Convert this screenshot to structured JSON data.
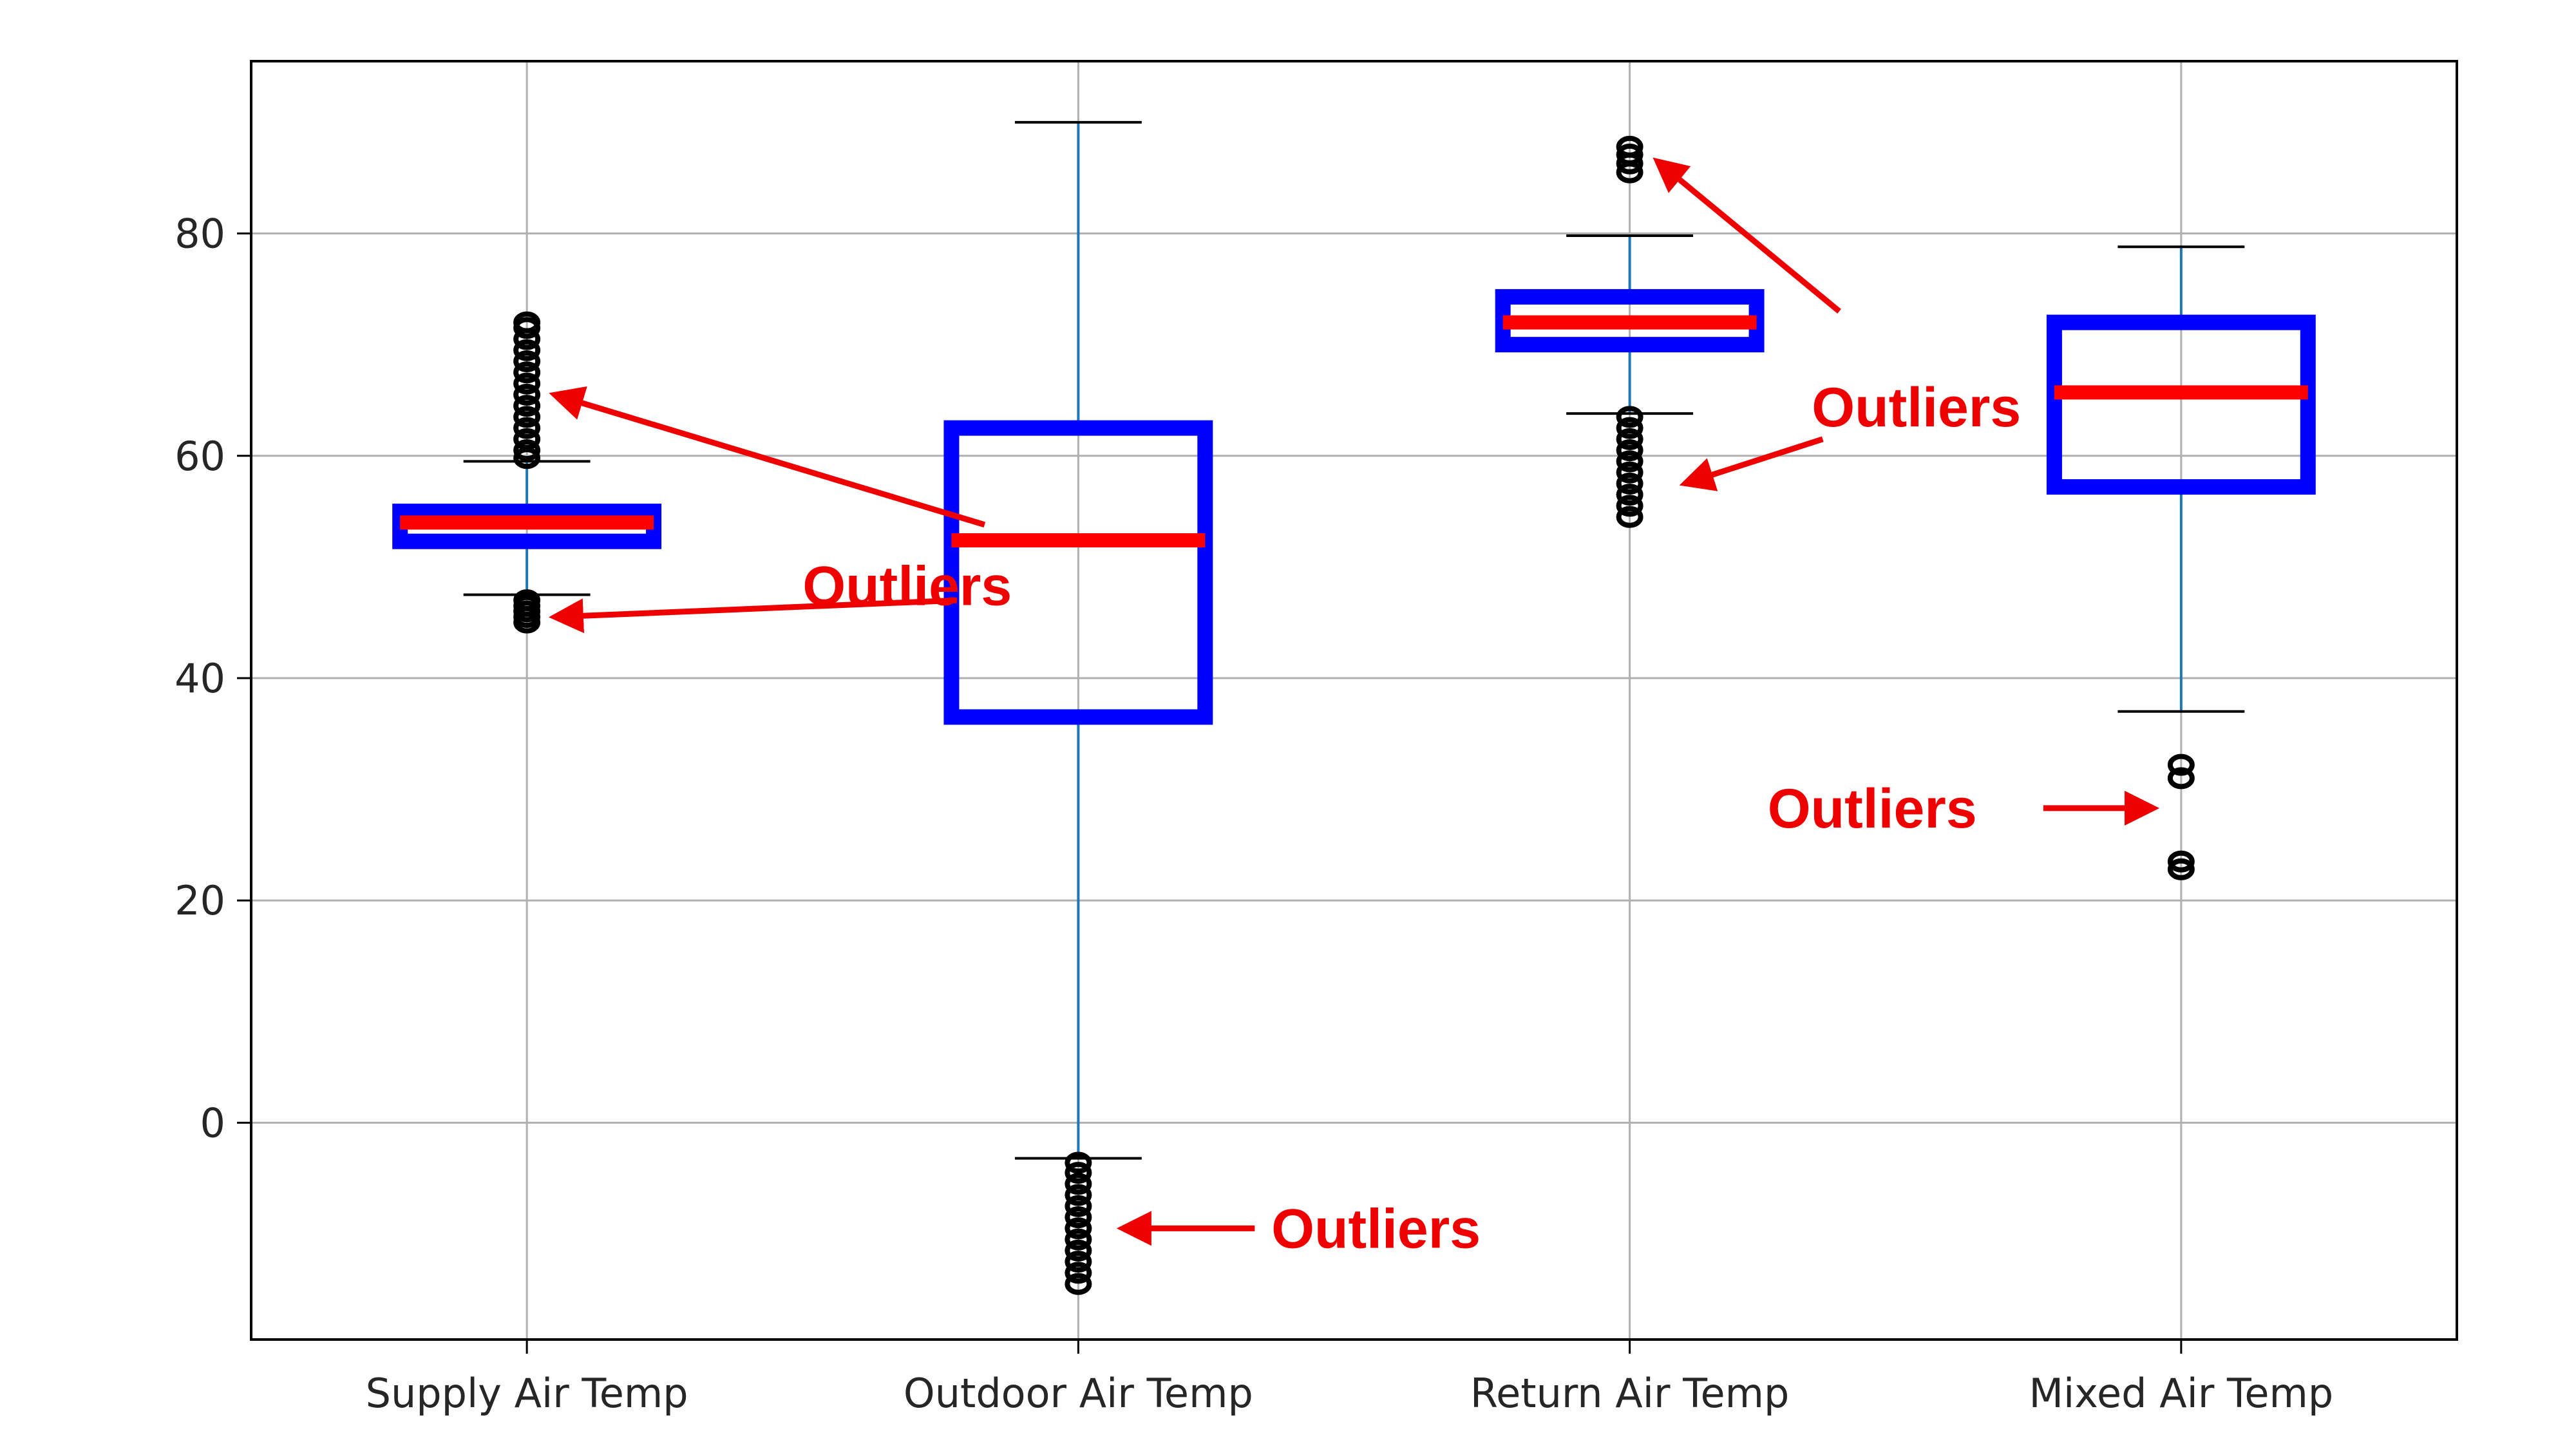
{
  "colors": {
    "box": "#0000ff",
    "median": "#ff0000",
    "whisker_line": "#1f77b4",
    "cap": "#000000",
    "flier": "#000000",
    "annotation": "#ee0000",
    "grid": "#b0b0b0"
  },
  "chart_data": {
    "type": "box",
    "grid": true,
    "ylim": [
      -19.5,
      95.5
    ],
    "yticks": [
      "0",
      "20",
      "40",
      "60",
      "80"
    ],
    "categories": [
      "Supply Air Temp",
      "Outdoor Air Temp",
      "Return Air Temp",
      "Mixed Air Temp"
    ],
    "series": [
      {
        "q1": 52.3,
        "median": 54.0,
        "q3": 55.0,
        "whisker_low": 47.5,
        "whisker_high": 59.5,
        "outliers_low": [
          45.0,
          45.5,
          46.0,
          46.5,
          47.0
        ],
        "outliers_high": [
          59.8,
          60.5,
          61.5,
          62.5,
          63.5,
          64.5,
          65.5,
          66.5,
          67.5,
          68.5,
          69.5,
          70.5,
          71.5,
          72.0
        ]
      },
      {
        "q1": 36.5,
        "median": 52.4,
        "q3": 62.5,
        "whisker_low": -3.2,
        "whisker_high": 90.0,
        "outliers_low": [
          -3.6,
          -4.5,
          -5.5,
          -6.5,
          -7.5,
          -8.5,
          -9.5,
          -10.5,
          -11.5,
          -12.5,
          -13.5,
          -14.5
        ],
        "outliers_high": []
      },
      {
        "q1": 70.0,
        "median": 72.0,
        "q3": 74.3,
        "whisker_low": 63.8,
        "whisker_high": 79.8,
        "outliers_low": [
          63.5,
          62.5,
          61.5,
          60.5,
          59.5,
          58.5,
          57.5,
          56.5,
          55.5,
          54.5
        ],
        "outliers_high": [
          85.5,
          86.3,
          87.1,
          87.8
        ]
      },
      {
        "q1": 57.2,
        "median": 65.7,
        "q3": 72.0,
        "whisker_low": 37.0,
        "whisker_high": 78.8,
        "outliers_low": [
          32.2,
          31.0,
          23.5,
          22.8
        ],
        "outliers_high": []
      }
    ]
  },
  "annotations": [
    {
      "text": "Outliers",
      "target_series": 0,
      "targets": [
        {
          "x": 1.05,
          "y": 65.5
        },
        {
          "x": 1.05,
          "y": 45.5
        }
      ]
    },
    {
      "text": "Outliers",
      "target_series": 1,
      "targets": [
        {
          "x": 2.08,
          "y": -9.5
        }
      ]
    },
    {
      "text": "Outliers",
      "target_series": 2,
      "targets": [
        {
          "x": 3.05,
          "y": 86.5
        },
        {
          "x": 3.1,
          "y": 57.5
        }
      ]
    },
    {
      "text": "Outliers",
      "target_series": 3,
      "targets": [
        {
          "x": 3.95,
          "y": 28.3
        }
      ]
    }
  ]
}
